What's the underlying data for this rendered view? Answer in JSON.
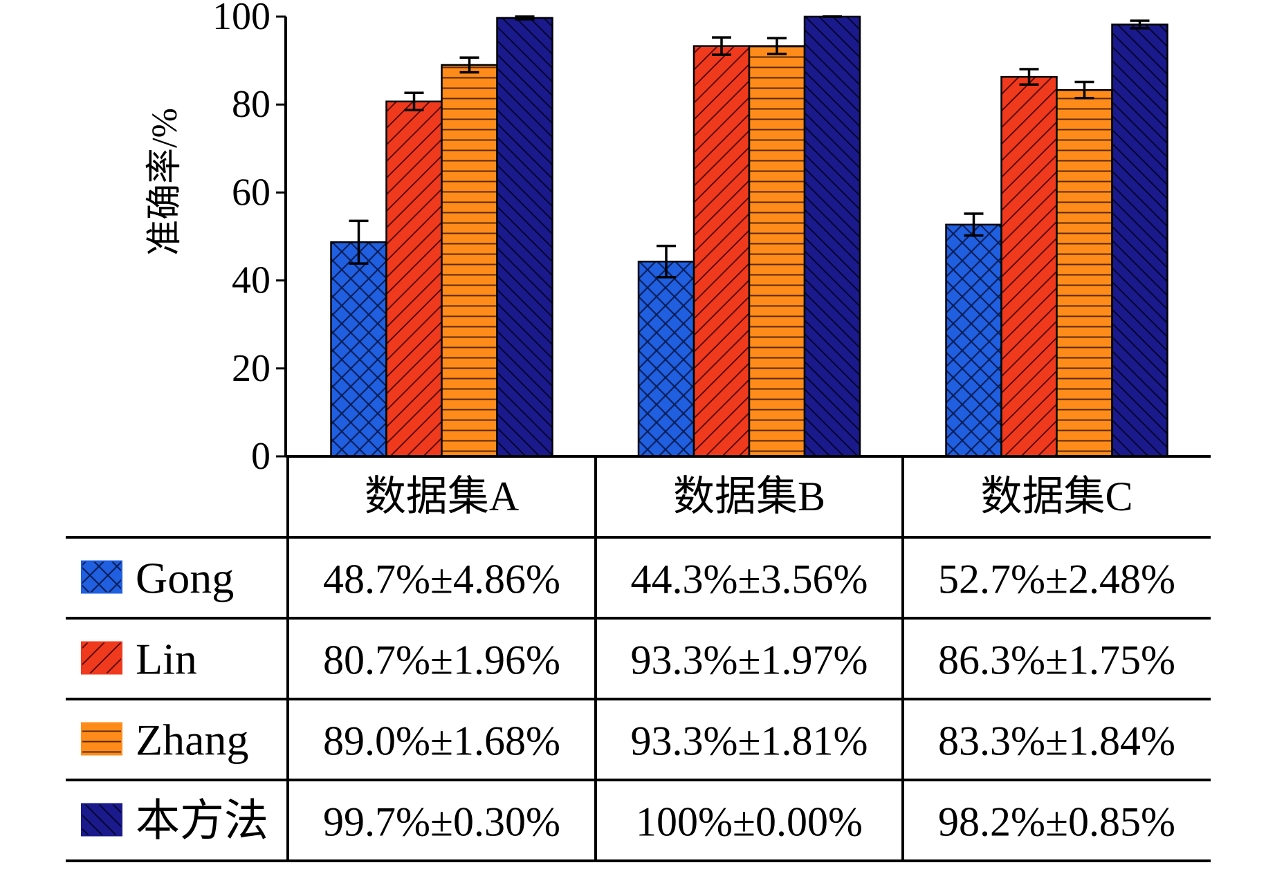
{
  "chart_data": {
    "type": "bar",
    "ylabel": "准确率/%",
    "ylim": [
      0,
      100
    ],
    "yticks": [
      0,
      20,
      40,
      60,
      80,
      100
    ],
    "categories": [
      "数据集A",
      "数据集B",
      "数据集C"
    ],
    "series": [
      {
        "name": "Gong",
        "color": "#1f5fe0",
        "pattern": "crosshatch",
        "values": [
          48.7,
          44.3,
          52.7
        ],
        "errors": [
          4.86,
          3.56,
          2.48
        ],
        "labels": [
          "48.7%±4.86%",
          "44.3%±3.56%",
          "52.7%±2.48%"
        ]
      },
      {
        "name": "Lin",
        "color": "#f03a1e",
        "pattern": "diagonal",
        "values": [
          80.7,
          93.3,
          86.3
        ],
        "errors": [
          1.96,
          1.97,
          1.75
        ],
        "labels": [
          "80.7%±1.96%",
          "93.3%±1.97%",
          "86.3%±1.75%"
        ]
      },
      {
        "name": "Zhang",
        "color": "#ff8c1a",
        "pattern": "horizontal",
        "values": [
          89.0,
          93.3,
          83.3
        ],
        "errors": [
          1.68,
          1.81,
          1.84
        ],
        "labels": [
          "89.0%±1.68%",
          "93.3%±1.81%",
          "83.3%±1.84%"
        ]
      },
      {
        "name": "本方法",
        "color": "#1a1a8c",
        "pattern": "back-diagonal",
        "values": [
          99.7,
          100,
          98.2
        ],
        "errors": [
          0.3,
          0.0,
          0.85
        ],
        "labels": [
          "99.7%±0.30%",
          "100%±0.00%",
          "98.2%±0.85%"
        ]
      }
    ]
  }
}
